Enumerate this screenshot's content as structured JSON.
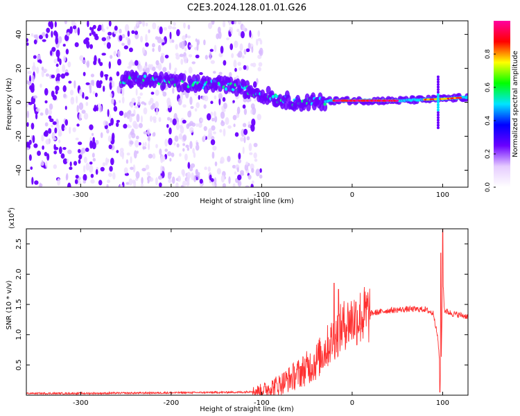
{
  "title": "C2E3.2024.128.01.01.G26",
  "chart_data": [
    {
      "type": "heatmap",
      "xlabel": "Height of straight line (km)",
      "ylabel": "Frequency (Hz)",
      "xlim": [
        -360,
        128
      ],
      "ylim": [
        -50,
        48
      ],
      "xticks": [
        -300,
        -200,
        -100,
        0,
        100
      ],
      "yticks": [
        -40,
        -20,
        0,
        20,
        40
      ],
      "colorbar": {
        "label": "Normalized spectral amplitude",
        "range": [
          0,
          1
        ],
        "ticks": [
          "0.0",
          "0.2",
          "0.4",
          "0.6",
          "0.8"
        ],
        "tick_values": [
          0.0,
          0.2,
          0.4,
          0.6,
          0.8
        ],
        "colormap": [
          "#ffffff",
          "#e6ccff",
          "#6a00ff",
          "#0000ff",
          "#00e5ff",
          "#00ff00",
          "#ffff00",
          "#ff0000",
          "#ff00a0"
        ]
      },
      "ridge": [
        {
          "x": -250,
          "f": 14
        },
        {
          "x": -220,
          "f": 13
        },
        {
          "x": -200,
          "f": 12
        },
        {
          "x": -170,
          "f": 11
        },
        {
          "x": -140,
          "f": 10
        },
        {
          "x": -120,
          "f": 8
        },
        {
          "x": -100,
          "f": 5
        },
        {
          "x": -80,
          "f": 2
        },
        {
          "x": -60,
          "f": 0
        },
        {
          "x": -40,
          "f": 0
        },
        {
          "x": -20,
          "f": 1
        },
        {
          "x": 0,
          "f": 1
        },
        {
          "x": 50,
          "f": 1
        },
        {
          "x": 100,
          "f": 2
        },
        {
          "x": 128,
          "f": 3
        }
      ]
    },
    {
      "type": "line",
      "xlabel": "Height of straight line (km)",
      "ylabel": "SNR (10 * v/v)",
      "yscale_label": "(x10",
      "yscale_exponent": "4",
      "xlim": [
        -360,
        128
      ],
      "ylim": [
        0,
        2.75
      ],
      "xticks": [
        -300,
        -200,
        -100,
        0,
        100
      ],
      "yticks": [
        "0.5",
        "1.0",
        "1.5",
        "2.0",
        "2.5"
      ],
      "ytick_values": [
        0.5,
        1.0,
        1.5,
        2.0,
        2.5
      ],
      "color": "#ff3030",
      "series": [
        {
          "x": [
            -360,
            -300,
            -200,
            -120,
            -100,
            -80,
            -60,
            -40,
            -30,
            -20,
            -10,
            0,
            20,
            40,
            60,
            80,
            90,
            95,
            98,
            100,
            102,
            110,
            128
          ],
          "values": [
            0.03,
            0.03,
            0.04,
            0.05,
            0.08,
            0.18,
            0.35,
            0.55,
            0.75,
            0.95,
            1.15,
            1.25,
            1.35,
            1.4,
            1.42,
            1.42,
            1.35,
            0.9,
            0.15,
            2.0,
            1.4,
            1.35,
            1.3
          ]
        }
      ],
      "spikes": [
        {
          "x": -20,
          "value": 1.85
        },
        {
          "x": -15,
          "value": 1.75
        },
        {
          "x": 98,
          "value": 2.35
        },
        {
          "x": 100,
          "value": 2.75
        },
        {
          "x": 97,
          "value": 0.05
        }
      ]
    }
  ]
}
